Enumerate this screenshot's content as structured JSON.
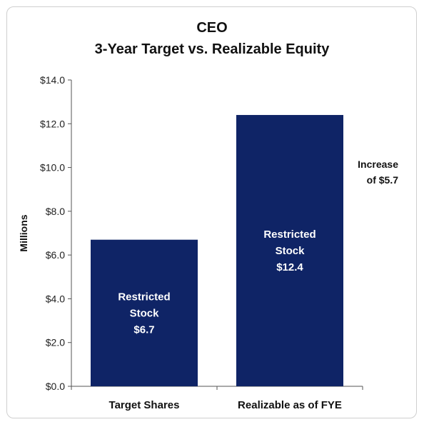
{
  "chart_data": {
    "type": "bar",
    "title": "CEO",
    "subtitle": "3-Year Target vs. Realizable Equity",
    "ylabel": "Millions",
    "xlabel": "",
    "ylim": [
      0,
      14
    ],
    "yticks": [
      "$0.0",
      "$2.0",
      "$4.0",
      "$6.0",
      "$8.0",
      "$10.0",
      "$12.0",
      "$14.0"
    ],
    "categories": [
      "Target Shares",
      "Realizable as of FYE"
    ],
    "values": [
      6.7,
      12.4
    ],
    "data_labels": [
      [
        "Restricted",
        "Stock",
        "$6.7"
      ],
      [
        "Restricted",
        "Stock",
        "$12.4"
      ]
    ],
    "annotation": [
      "Increase",
      "of $5.7"
    ],
    "bar_color": "#0f2466",
    "grid": false
  }
}
